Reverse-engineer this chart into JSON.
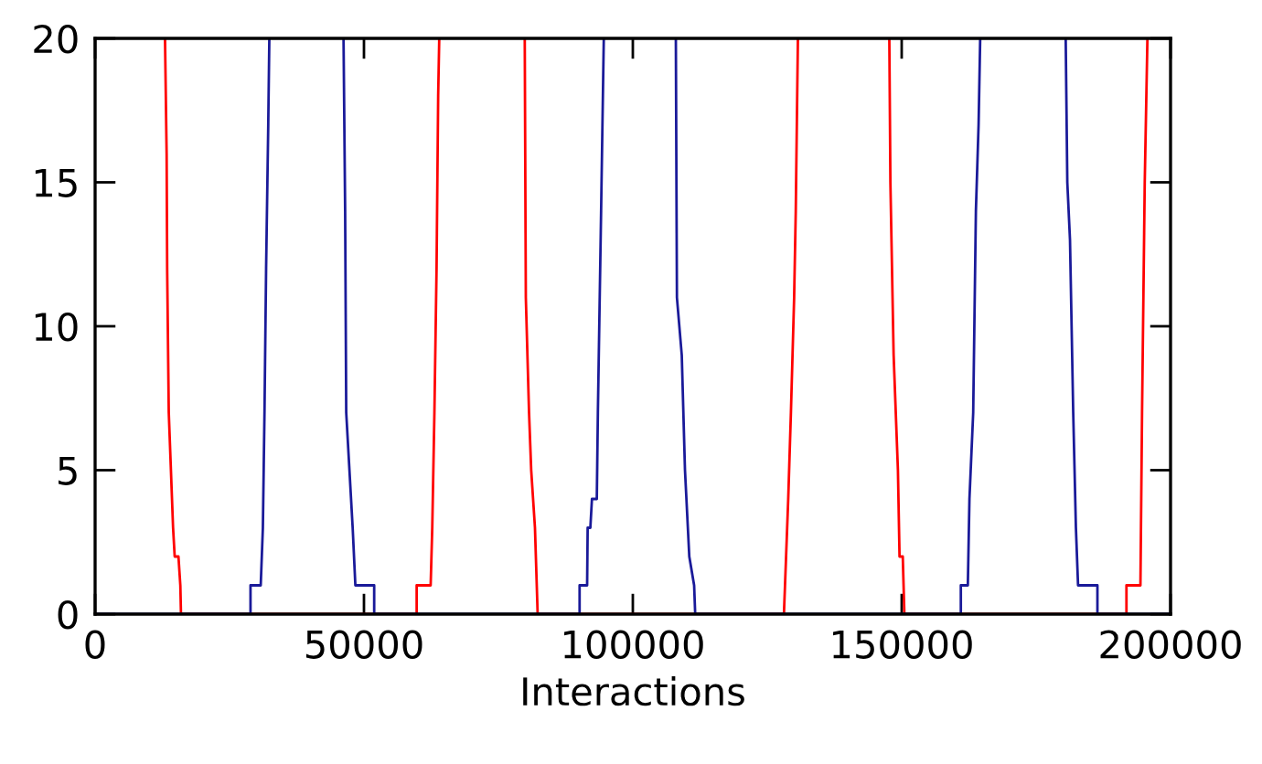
{
  "chart_data": {
    "type": "line",
    "xlabel": "Interactions",
    "xlim": [
      0,
      200000
    ],
    "ylim": [
      0,
      20
    ],
    "xticks": [
      0,
      50000,
      100000,
      150000,
      200000
    ],
    "yticks": [
      0,
      5,
      10,
      15,
      20
    ],
    "grid": false,
    "legend": false,
    "marker": "none",
    "line_style": "solid",
    "series": [
      {
        "color": "#ff0000",
        "x": [
          13000,
          13300,
          13400,
          13700,
          14500,
          14800,
          15500,
          15850,
          15970,
          59800,
          59800,
          62400,
          62700,
          63100,
          63500,
          63800,
          64000,
          72000,
          79900,
          80100,
          80700,
          81100,
          81800,
          82300,
          128100,
          128300,
          128900,
          129400,
          130000,
          130300,
          130700,
          140000,
          147700,
          147900,
          148500,
          149300,
          149600,
          150200,
          150500,
          191800,
          191800,
          194400,
          194700,
          195200,
          195700
        ],
        "values": [
          20,
          16,
          12,
          7,
          3,
          2,
          2,
          1,
          0,
          0,
          1,
          1,
          3,
          7,
          12,
          18,
          20,
          null,
          20,
          11,
          7,
          5,
          3,
          0,
          0,
          1,
          4,
          7,
          11,
          14,
          20,
          null,
          20,
          15,
          9,
          5,
          2,
          2,
          0,
          0,
          1,
          1,
          7,
          15,
          20
        ]
      },
      {
        "color": "#1a1a99",
        "x": [
          0,
          28900,
          28900,
          30800,
          31200,
          31500,
          31800,
          32200,
          32400,
          40000,
          46200,
          46500,
          46700,
          47300,
          47900,
          48400,
          51900,
          51900,
          90100,
          90100,
          91500,
          91600,
          92100,
          92400,
          93300,
          93500,
          94100,
          94600,
          100000,
          108000,
          108200,
          109100,
          109700,
          110500,
          111400,
          111600,
          161000,
          161000,
          162300,
          162600,
          163300,
          163800,
          164300,
          164600,
          172000,
          180500,
          180800,
          181300,
          181900,
          182400,
          182800,
          186400,
          186400,
          200000
        ],
        "values": [
          0,
          0,
          1,
          1,
          3,
          7,
          12,
          17,
          20,
          null,
          20,
          14,
          7,
          5,
          3,
          1,
          1,
          0,
          0,
          1,
          1,
          3,
          3,
          4,
          4,
          7,
          14,
          20,
          null,
          20,
          11,
          9,
          5,
          2,
          1,
          0,
          0,
          1,
          1,
          4,
          7,
          14,
          17,
          20,
          null,
          20,
          15,
          13,
          7,
          3,
          1,
          1,
          0,
          0
        ]
      }
    ]
  }
}
